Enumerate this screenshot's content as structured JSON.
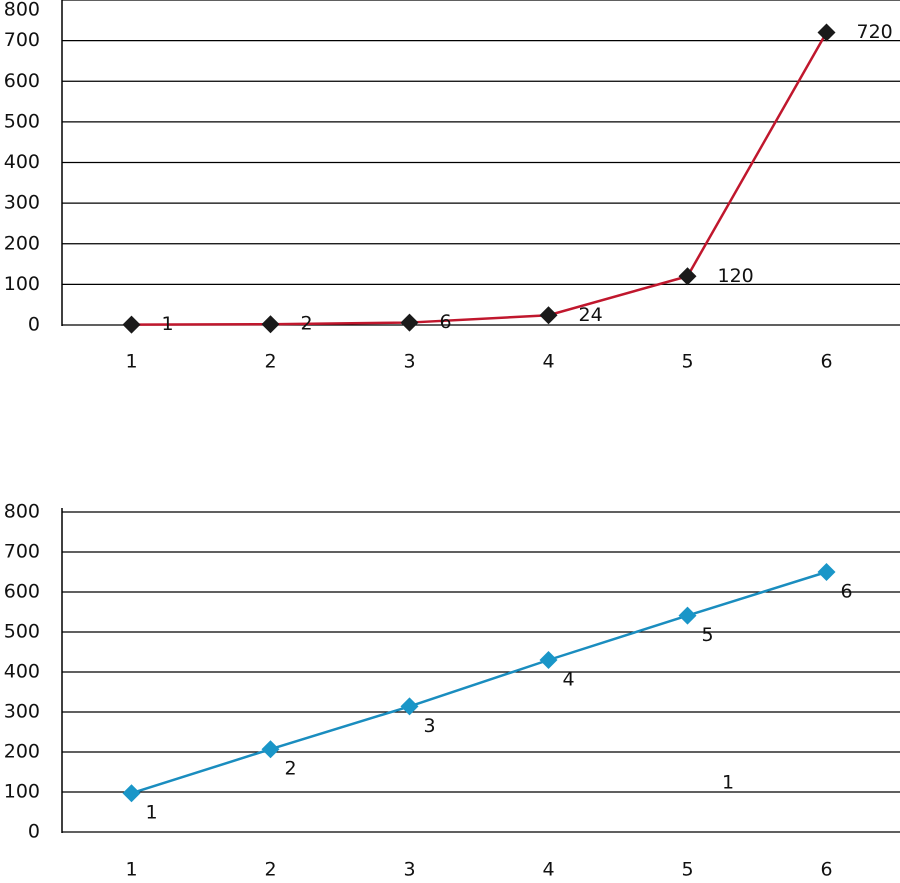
{
  "chart_data": [
    {
      "type": "line",
      "categories": [
        "1",
        "2",
        "3",
        "4",
        "5",
        "6"
      ],
      "series": [
        {
          "color": "#c0172d",
          "marker_color": "#1a1a1a",
          "values": [
            1,
            2,
            6,
            24,
            120,
            720
          ]
        }
      ],
      "ylim": [
        0,
        800
      ],
      "yticks": [
        0,
        100,
        200,
        300,
        400,
        500,
        600,
        700,
        800
      ],
      "grid": true
    },
    {
      "type": "line",
      "categories": [
        "1",
        "2",
        "3",
        "4",
        "5",
        "6"
      ],
      "series": [
        {
          "color": "#1a8dbf",
          "marker_color": "#1a96c8",
          "values": [
            97,
            207,
            314,
            430,
            541,
            650
          ],
          "point_labels": [
            "1",
            "2",
            "3",
            "4",
            "5",
            "6"
          ]
        }
      ],
      "annotations": [
        "1"
      ],
      "ylim": [
        0,
        800
      ],
      "yticks": [
        0,
        100,
        200,
        300,
        400,
        500,
        600,
        700,
        800
      ],
      "grid": true
    }
  ]
}
